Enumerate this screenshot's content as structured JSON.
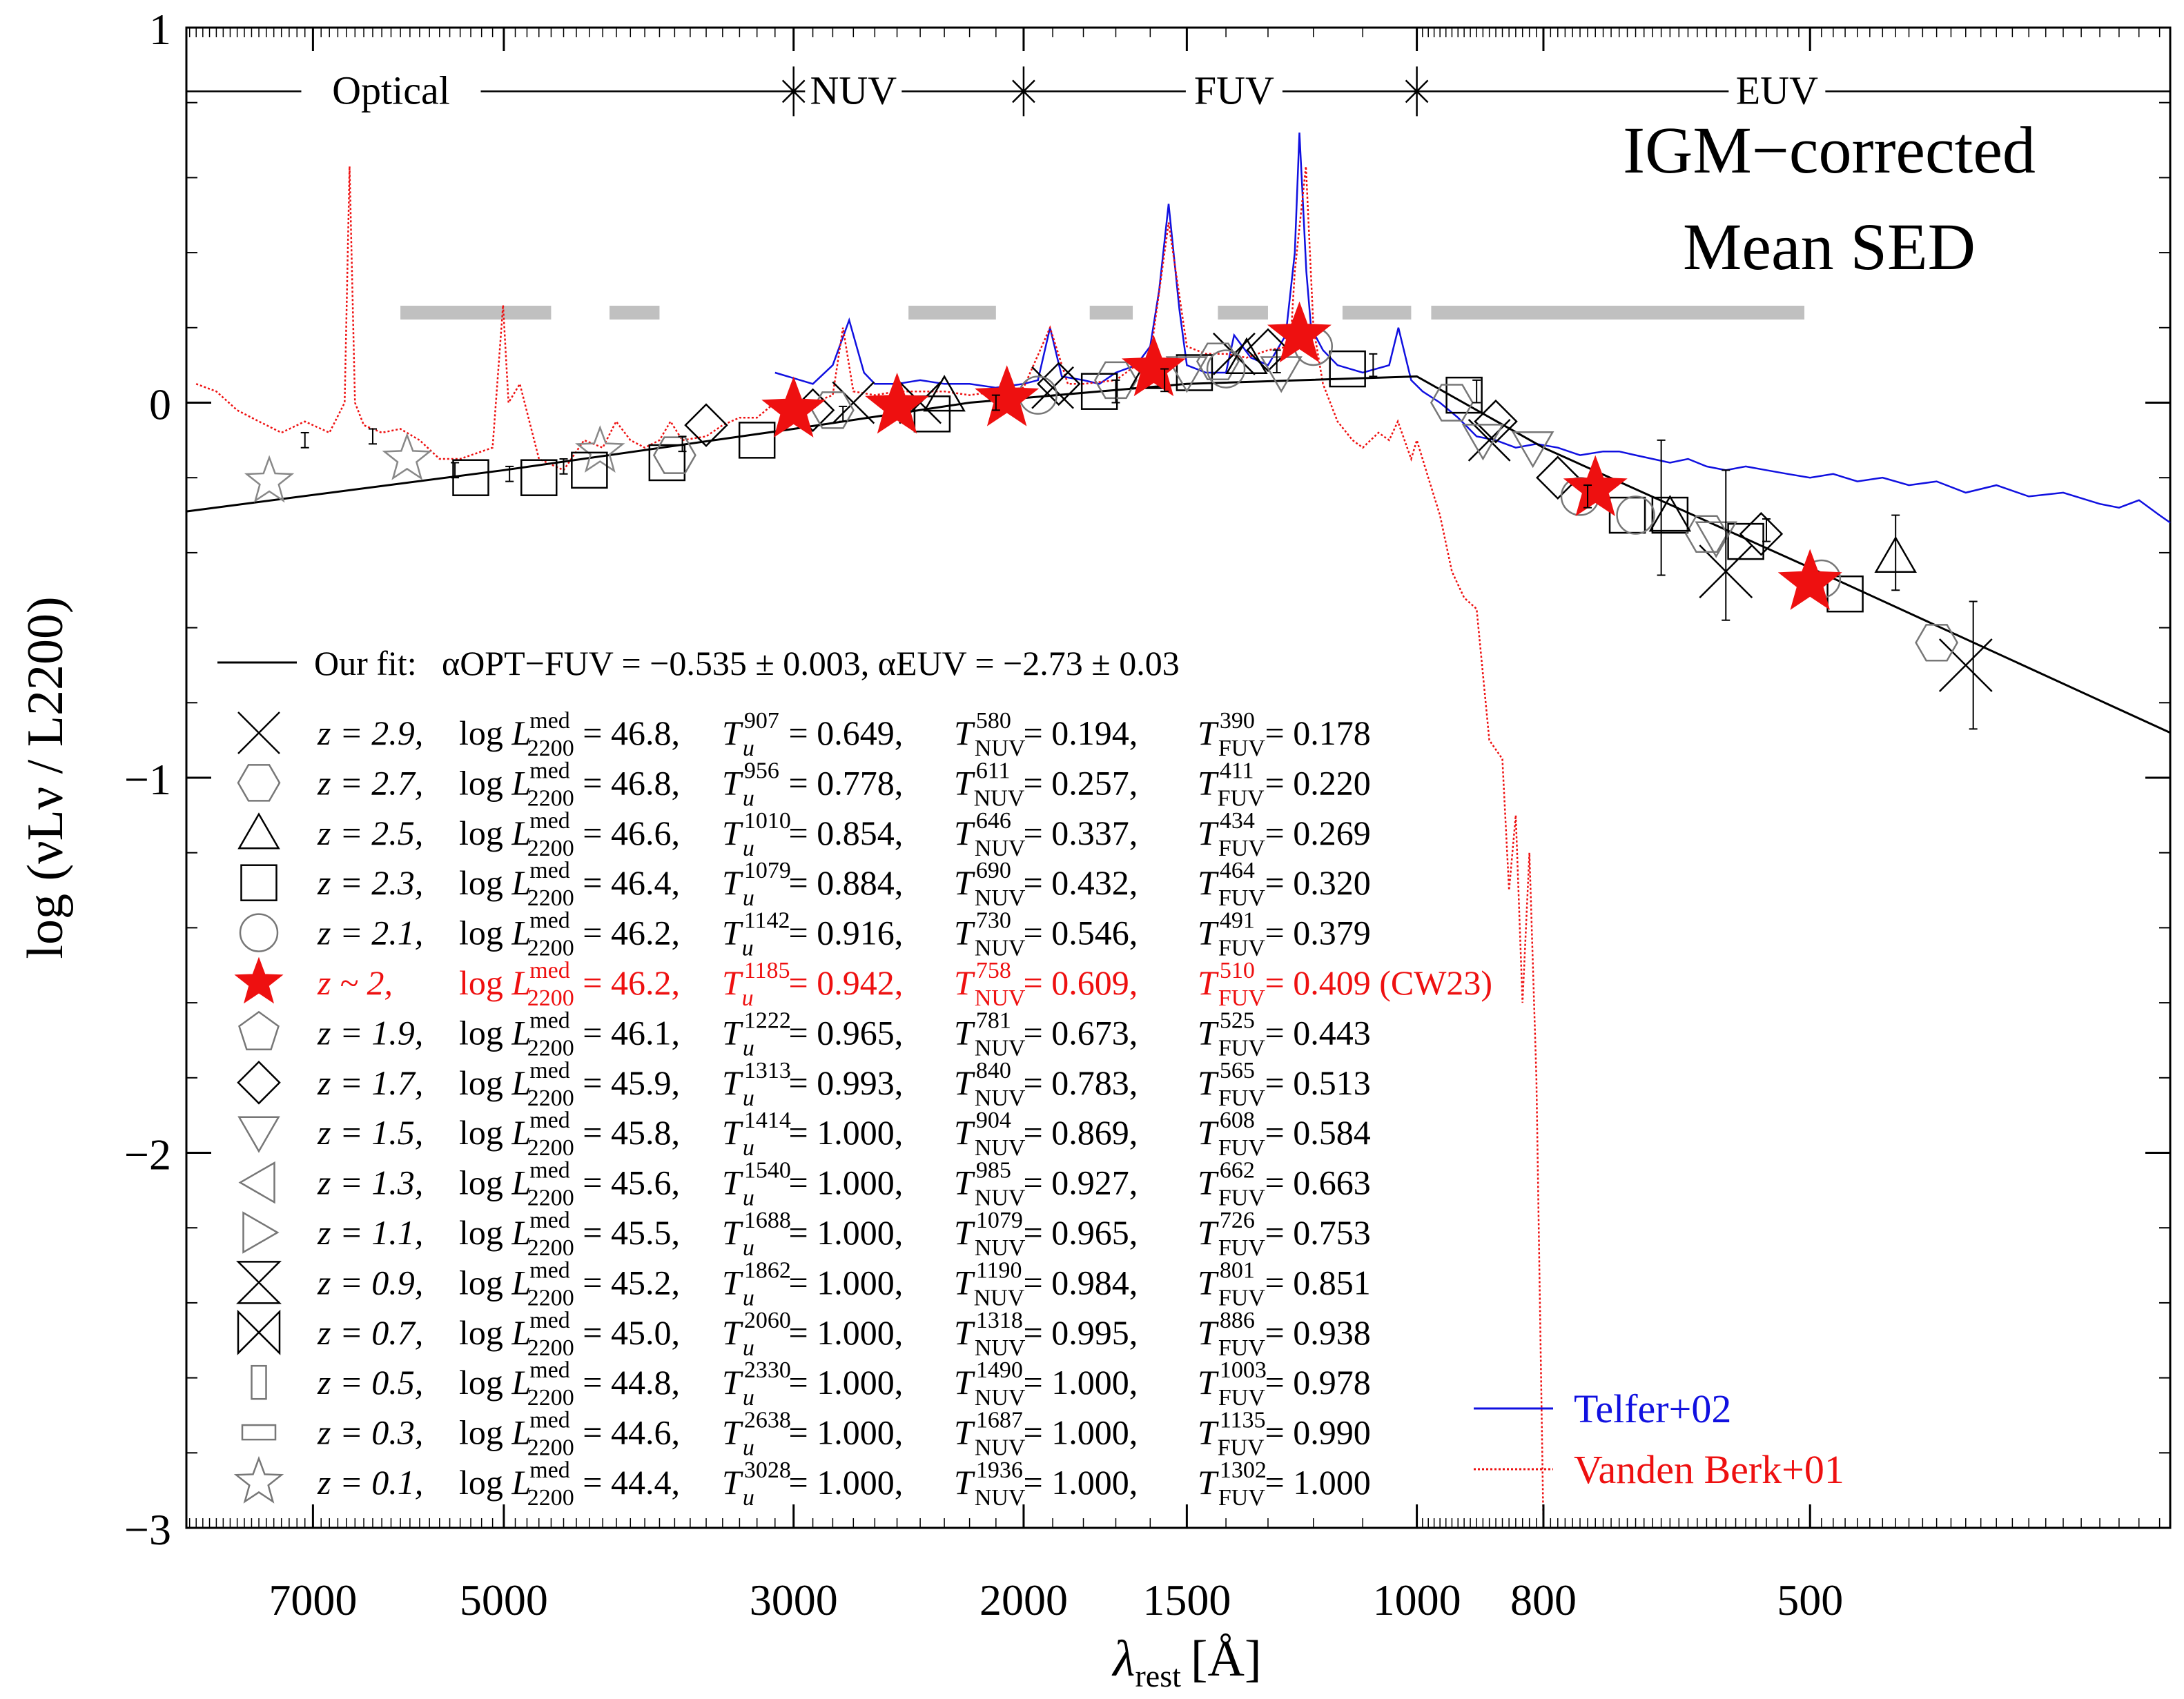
{
  "chart_data": {
    "type": "line",
    "title": "IGM−corrected",
    "subtitle": "Mean SED",
    "xlabel": "λ",
    "xlabel_sub": "rest",
    "xlabel_unit": "[Å]",
    "ylabel": "log (νLν / L2200)",
    "xscale": "log",
    "xlim": [
      8750,
      265
    ],
    "ylim": [
      -3,
      1
    ],
    "xticks": [
      7000,
      5000,
      3000,
      2000,
      1500,
      1000,
      800,
      500
    ],
    "yticks": [
      1,
      0,
      -1,
      -2,
      -3
    ],
    "bands": [
      {
        "label": "Optical",
        "center": 6100
      },
      {
        "label": "NUV",
        "center": 2700
      },
      {
        "label": "FUV",
        "center": 1380
      },
      {
        "label": "EUV",
        "center": 530
      }
    ],
    "band_boundaries": [
      3000,
      2000,
      1000
    ],
    "band_line_y": 0.83,
    "fit": {
      "label": "Our fit:",
      "alpha_opt_fuv": -0.535,
      "alpha_opt_fuv_err": 0.003,
      "alpha_euv": -2.73,
      "alpha_euv_err": 0.03,
      "break_wavelength": 1000,
      "label_text": "αOPT−FUV = −0.535 ± 0.003, αEUV = −2.73 ± 0.03"
    },
    "fit_points": [
      [
        8750,
        -0.29
      ],
      [
        5000,
        -0.18
      ],
      [
        3000,
        -0.07
      ],
      [
        2200,
        0
      ],
      [
        1500,
        0.05
      ],
      [
        1000,
        0.07
      ],
      [
        800,
        -0.12
      ],
      [
        500,
        -0.44
      ],
      [
        265,
        -0.88
      ]
    ],
    "gray_bars_y": 0.24,
    "gray_bars": [
      [
        6000,
        4600
      ],
      [
        4150,
        3800
      ],
      [
        2450,
        2100
      ],
      [
        1780,
        1650
      ],
      [
        1420,
        1300
      ],
      [
        1140,
        1010
      ],
      [
        975,
        505
      ]
    ],
    "sample_points": [
      {
        "marker": "star",
        "wavelength": [
          7560,
          5930,
          4220,
          3000,
          2500,
          2060,
          1590,
          1230,
          730,
          500
        ],
        "values": [
          -0.21,
          -0.15,
          -0.13,
          -0.02,
          -0.01,
          0.01,
          0.09,
          0.18,
          -0.23,
          -0.48
        ]
      },
      {
        "marker": "square",
        "wavelength": [
          5300,
          4700,
          4300,
          3750,
          3200,
          2350,
          1750,
          1480,
          1130,
          920,
          690,
          640,
          560,
          470
        ],
        "values": [
          -0.2,
          -0.2,
          -0.18,
          -0.16,
          -0.1,
          -0.03,
          0.03,
          0.08,
          0.09,
          0.02,
          -0.3,
          -0.3,
          -0.37,
          -0.51
        ]
      },
      {
        "marker": "cross",
        "wavelength": [
          2700,
          2400,
          1900,
          1380,
          880,
          580,
          380
        ],
        "values": [
          0.0,
          0.0,
          0.04,
          0.13,
          -0.1,
          -0.45,
          -0.7
        ]
      },
      {
        "marker": "diamond",
        "wavelength": [
          3500,
          2900,
          1880,
          1300,
          870,
          780,
          545
        ],
        "values": [
          -0.06,
          -0.02,
          0.05,
          0.14,
          -0.05,
          -0.2,
          -0.35
        ]
      },
      {
        "marker": "hexagon",
        "wavelength": [
          3700,
          2800,
          1700,
          1420,
          940,
          600,
          400
        ],
        "values": [
          -0.14,
          -0.02,
          0.06,
          0.11,
          0.0,
          -0.35,
          -0.64
        ]
      },
      {
        "marker": "triangle",
        "wavelength": [
          2300,
          1600,
          1350,
          640,
          430
        ],
        "values": [
          0.02,
          0.08,
          0.12,
          -0.3,
          -0.41
        ]
      },
      {
        "marker": "circle",
        "wavelength": [
          1950,
          1400,
          1200,
          750,
          680,
          490
        ],
        "values": [
          0.02,
          0.09,
          0.15,
          -0.25,
          -0.3,
          -0.47
        ]
      },
      {
        "marker": "tri-down",
        "wavelength": [
          1500,
          1270,
          890,
          815,
          590
        ],
        "values": [
          0.08,
          0.08,
          -0.1,
          -0.12,
          -0.36
        ]
      }
    ],
    "error_points": [
      {
        "wavelength": 7100,
        "value": -0.1,
        "err": 0.02
      },
      {
        "wavelength": 6300,
        "value": -0.09,
        "err": 0.02
      },
      {
        "wavelength": 5450,
        "value": -0.18,
        "err": 0.02
      },
      {
        "wavelength": 4950,
        "value": -0.19,
        "err": 0.02
      },
      {
        "wavelength": 4500,
        "value": -0.17,
        "err": 0.02
      },
      {
        "wavelength": 3650,
        "value": -0.11,
        "err": 0.02
      },
      {
        "wavelength": 2750,
        "value": -0.03,
        "err": 0.02
      },
      {
        "wavelength": 2100,
        "value": 0.0,
        "err": 0.02
      },
      {
        "wavelength": 1700,
        "value": 0.03,
        "err": 0.03
      },
      {
        "wavelength": 1560,
        "value": 0.06,
        "err": 0.03
      },
      {
        "wavelength": 1280,
        "value": 0.11,
        "err": 0.03
      },
      {
        "wavelength": 1080,
        "value": 0.1,
        "err": 0.03
      },
      {
        "wavelength": 900,
        "value": 0.03,
        "err": 0.03
      },
      {
        "wavelength": 740,
        "value": -0.25,
        "err": 0.03
      },
      {
        "wavelength": 650,
        "value": -0.28,
        "err": 0.18
      },
      {
        "wavelength": 580,
        "value": -0.38,
        "err": 0.2
      },
      {
        "wavelength": 540,
        "value": -0.34,
        "err": 0.03
      },
      {
        "wavelength": 430,
        "value": -0.4,
        "err": 0.1
      },
      {
        "wavelength": 375,
        "value": -0.7,
        "err": 0.17
      }
    ],
    "series": [
      {
        "name": "Telfer+02",
        "color": "#1010e0",
        "style": "solid",
        "x": [
          3100,
          2900,
          2800,
          2720,
          2650,
          2600,
          2500,
          2400,
          2300,
          2200,
          2100,
          2000,
          1950,
          1909,
          1870,
          1800,
          1750,
          1700,
          1640,
          1600,
          1575,
          1549,
          1520,
          1500,
          1450,
          1400,
          1380,
          1340,
          1300,
          1260,
          1240,
          1230,
          1225,
          1215,
          1205,
          1180,
          1150,
          1100,
          1050,
          1033,
          1010,
          990,
          960,
          930,
          900,
          870,
          840,
          810,
          780,
          750,
          720,
          700,
          680,
          660,
          640,
          620,
          600,
          580,
          560,
          540,
          520,
          500,
          480,
          460,
          440,
          420,
          400,
          380,
          360,
          340,
          320,
          300,
          290,
          280,
          270,
          265
        ],
        "values": [
          0.08,
          0.05,
          0.1,
          0.22,
          0.08,
          0.05,
          0.05,
          0.06,
          0.05,
          0.05,
          0.04,
          0.05,
          0.06,
          0.2,
          0.07,
          0.06,
          0.05,
          0.08,
          0.1,
          0.15,
          0.3,
          0.53,
          0.25,
          0.1,
          0.08,
          0.08,
          0.18,
          0.12,
          0.1,
          0.18,
          0.4,
          0.72,
          0.6,
          0.35,
          0.2,
          0.14,
          0.1,
          0.08,
          0.1,
          0.2,
          0.06,
          0.03,
          0.0,
          -0.04,
          -0.09,
          -0.1,
          -0.12,
          -0.11,
          -0.12,
          -0.14,
          -0.13,
          -0.13,
          -0.14,
          -0.15,
          -0.16,
          -0.15,
          -0.17,
          -0.18,
          -0.17,
          -0.18,
          -0.19,
          -0.2,
          -0.19,
          -0.21,
          -0.2,
          -0.22,
          -0.21,
          -0.24,
          -0.22,
          -0.25,
          -0.24,
          -0.27,
          -0.28,
          -0.26,
          -0.3,
          -0.32
        ]
      },
      {
        "name": "Vanden Berk+01",
        "color": "#ee1010",
        "style": "dotted",
        "x": [
          8600,
          8300,
          8000,
          7700,
          7400,
          7100,
          6800,
          6620,
          6563,
          6500,
          6400,
          6200,
          6000,
          5800,
          5600,
          5400,
          5100,
          5007,
          4959,
          4861,
          4700,
          4500,
          4340,
          4200,
          4102,
          4000,
          3900,
          3800,
          3727,
          3650,
          3500,
          3400,
          3300,
          3200,
          3100,
          3000,
          2900,
          2800,
          2750,
          2700,
          2600,
          2500,
          2400,
          2300,
          2200,
          2100,
          2000,
          1909,
          1850,
          1800,
          1700,
          1640,
          1600,
          1549,
          1500,
          1450,
          1400,
          1350,
          1300,
          1250,
          1240,
          1216,
          1200,
          1180,
          1150,
          1120,
          1100,
          1070,
          1050,
          1034,
          1010,
          1000,
          980,
          960,
          940,
          920,
          900,
          880,
          860,
          850,
          840,
          830,
          820,
          810,
          800
        ],
        "values": [
          0.05,
          0.03,
          -0.02,
          -0.05,
          -0.08,
          -0.05,
          -0.08,
          0.0,
          0.63,
          0.0,
          -0.06,
          -0.08,
          -0.07,
          -0.1,
          -0.15,
          -0.15,
          -0.12,
          0.26,
          0.0,
          0.05,
          -0.15,
          -0.18,
          -0.1,
          -0.12,
          -0.05,
          -0.1,
          -0.12,
          -0.1,
          -0.05,
          -0.1,
          -0.09,
          -0.06,
          -0.04,
          -0.04,
          0.0,
          -0.02,
          0.0,
          0.02,
          0.2,
          0.03,
          0.02,
          0.03,
          0.03,
          0.03,
          0.02,
          0.03,
          0.04,
          0.2,
          0.05,
          0.05,
          0.06,
          0.1,
          0.12,
          0.48,
          0.15,
          0.13,
          0.13,
          0.12,
          0.14,
          0.15,
          0.35,
          0.63,
          0.2,
          0.05,
          -0.05,
          -0.1,
          -0.12,
          -0.08,
          -0.1,
          -0.05,
          -0.15,
          -0.1,
          -0.2,
          -0.3,
          -0.45,
          -0.52,
          -0.55,
          -0.9,
          -0.95,
          -1.3,
          -1.1,
          -1.6,
          -1.2,
          -1.8,
          -3.0
        ]
      }
    ],
    "legend": {
      "placement": "lower-right",
      "entries": [
        {
          "name": "Telfer+02",
          "color": "#1010e0",
          "style": "solid"
        },
        {
          "name": "Vanden Berk+01",
          "color": "#ee1010",
          "style": "dotted"
        }
      ]
    },
    "samples": [
      {
        "marker": "cross",
        "z": "z = 2.9,",
        "logL": "46.8",
        "u_wl": "907",
        "u_val": "0.649",
        "nuv_wl": "580",
        "nuv_val": "0.194",
        "fuv_wl": "390",
        "fuv_val": "0.178"
      },
      {
        "marker": "hexagon",
        "z": "z = 2.7,",
        "logL": "46.8",
        "u_wl": "956",
        "u_val": "0.778",
        "nuv_wl": "611",
        "nuv_val": "0.257",
        "fuv_wl": "411",
        "fuv_val": "0.220"
      },
      {
        "marker": "triangle",
        "z": "z = 2.5,",
        "logL": "46.6",
        "u_wl": "1010",
        "u_val": "0.854",
        "nuv_wl": "646",
        "nuv_val": "0.337",
        "fuv_wl": "434",
        "fuv_val": "0.269"
      },
      {
        "marker": "square",
        "z": "z = 2.3,",
        "logL": "46.4",
        "u_wl": "1079",
        "u_val": "0.884",
        "nuv_wl": "690",
        "nuv_val": "0.432",
        "fuv_wl": "464",
        "fuv_val": "0.320"
      },
      {
        "marker": "circle",
        "z": "z = 2.1,",
        "logL": "46.2",
        "u_wl": "1142",
        "u_val": "0.916",
        "nuv_wl": "730",
        "nuv_val": "0.546",
        "fuv_wl": "491",
        "fuv_val": "0.379"
      },
      {
        "marker": "star-filled",
        "z": "z ~ 2,",
        "logL": "46.2",
        "u_wl": "1185",
        "u_val": "0.942",
        "nuv_wl": "758",
        "nuv_val": "0.609",
        "fuv_wl": "510",
        "fuv_val": "0.409",
        "note": "(CW23)",
        "highlight": "#ee1010"
      },
      {
        "marker": "pentagon",
        "z": "z = 1.9,",
        "logL": "46.1",
        "u_wl": "1222",
        "u_val": "0.965",
        "nuv_wl": "781",
        "nuv_val": "0.673",
        "fuv_wl": "525",
        "fuv_val": "0.443"
      },
      {
        "marker": "diamond",
        "z": "z = 1.7,",
        "logL": "45.9",
        "u_wl": "1313",
        "u_val": "0.993",
        "nuv_wl": "840",
        "nuv_val": "0.783",
        "fuv_wl": "565",
        "fuv_val": "0.513"
      },
      {
        "marker": "tri-down",
        "z": "z = 1.5,",
        "logL": "45.8",
        "u_wl": "1414",
        "u_val": "1.000",
        "nuv_wl": "904",
        "nuv_val": "0.869",
        "fuv_wl": "608",
        "fuv_val": "0.584"
      },
      {
        "marker": "tri-left",
        "z": "z = 1.3,",
        "logL": "45.6",
        "u_wl": "1540",
        "u_val": "1.000",
        "nuv_wl": "985",
        "nuv_val": "0.927",
        "fuv_wl": "662",
        "fuv_val": "0.663"
      },
      {
        "marker": "tri-right",
        "z": "z = 1.1,",
        "logL": "45.5",
        "u_wl": "1688",
        "u_val": "1.000",
        "nuv_wl": "1079",
        "nuv_val": "0.965",
        "fuv_wl": "726",
        "fuv_val": "0.753"
      },
      {
        "marker": "hourglass",
        "z": "z = 0.9,",
        "logL": "45.2",
        "u_wl": "1862",
        "u_val": "1.000",
        "nuv_wl": "1190",
        "nuv_val": "0.984",
        "fuv_wl": "801",
        "fuv_val": "0.851"
      },
      {
        "marker": "bowtie",
        "z": "z = 0.7,",
        "logL": "45.0",
        "u_wl": "2060",
        "u_val": "1.000",
        "nuv_wl": "1318",
        "nuv_val": "0.995",
        "fuv_wl": "886",
        "fuv_val": "0.938"
      },
      {
        "marker": "tall-rect",
        "z": "z = 0.5,",
        "logL": "44.8",
        "u_wl": "2330",
        "u_val": "1.000",
        "nuv_wl": "1490",
        "nuv_val": "1.000",
        "fuv_wl": "1003",
        "fuv_val": "0.978"
      },
      {
        "marker": "wide-rect",
        "z": "z = 0.3,",
        "logL": "44.6",
        "u_wl": "2638",
        "u_val": "1.000",
        "nuv_wl": "1687",
        "nuv_val": "1.000",
        "fuv_wl": "1135",
        "fuv_val": "0.990"
      },
      {
        "marker": "star",
        "z": "z = 0.1,",
        "logL": "44.4",
        "u_wl": "3028",
        "u_val": "1.000",
        "nuv_wl": "1936",
        "nuv_val": "1.000",
        "fuv_wl": "1302",
        "fuv_val": "1.000"
      }
    ]
  }
}
